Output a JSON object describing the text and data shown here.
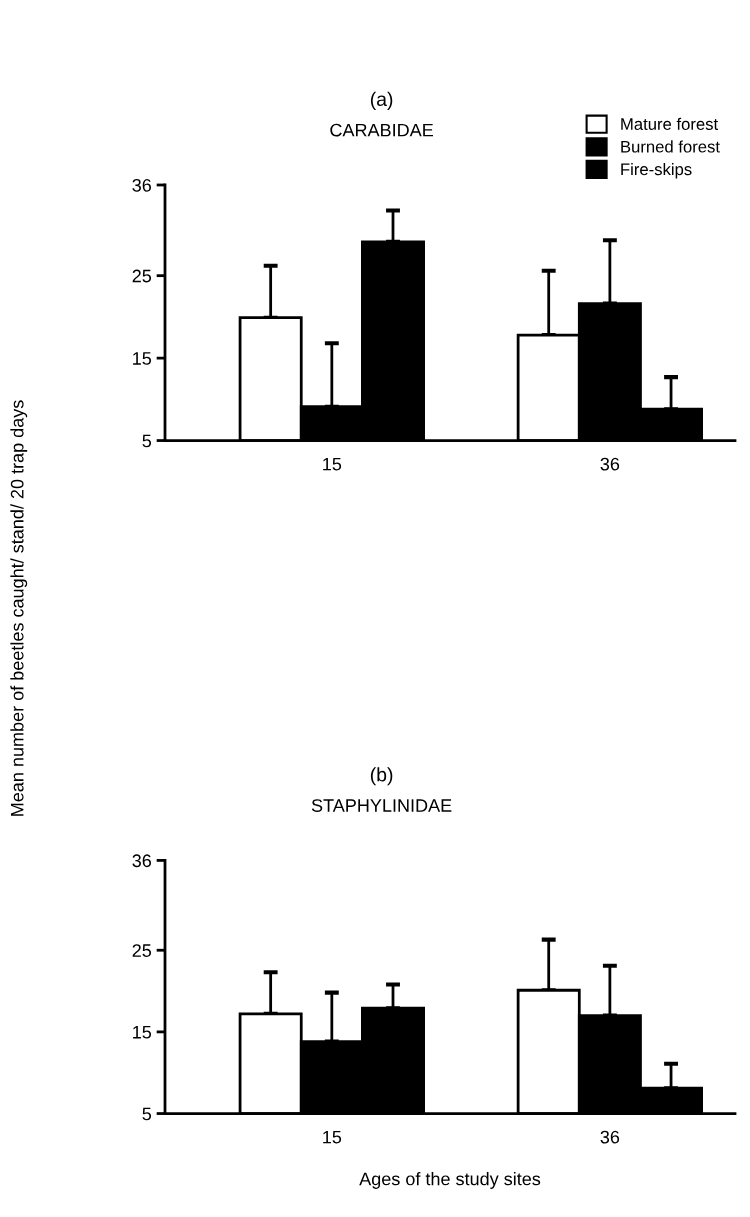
{
  "chart_data": [
    {
      "type": "bar",
      "title": "(a)",
      "subtitle": "CARABIDAE",
      "ylabel": "Mean number of beetles caught/ stand/ 20 trap days",
      "categories": [
        "15",
        "36"
      ],
      "ylim": [
        5,
        36
      ],
      "yticks": [
        5,
        15,
        25,
        36
      ],
      "legend": "top right",
      "series": [
        {
          "name": "Mature forest",
          "color": "#ffffff",
          "values": [
            19.9,
            17.8
          ],
          "errors": [
            [
              19.9,
              26.2
            ],
            [
              17.8,
              25.6
            ]
          ]
        },
        {
          "name": "Burned forest",
          "color": "#000000",
          "values": [
            9.1,
            21.6
          ],
          "errors": [
            [
              9.1,
              16.8
            ],
            [
              21.6,
              29.3
            ]
          ]
        },
        {
          "name": "Fire-skips",
          "color": "#000000",
          "values": [
            29.1,
            8.8
          ],
          "errors": [
            [
              29.1,
              32.9
            ],
            [
              8.8,
              12.7
            ]
          ]
        }
      ]
    },
    {
      "type": "bar",
      "title": "(b)",
      "subtitle": "STAPHYLINIDAE",
      "xlabel": "Ages of the study sites",
      "categories": [
        "15",
        "36"
      ],
      "ylim": [
        5,
        36
      ],
      "yticks": [
        5,
        15,
        25,
        36
      ],
      "series": [
        {
          "color": "#ffffff",
          "values": [
            17.2,
            20.1
          ],
          "errors": [
            [
              17.2,
              22.3
            ],
            [
              20.1,
              26.3
            ]
          ]
        },
        {
          "color": "#000000",
          "values": [
            13.8,
            17.0
          ],
          "errors": [
            [
              13.8,
              19.8
            ],
            [
              17.0,
              23.1
            ]
          ]
        },
        {
          "color": "#000000",
          "values": [
            17.9,
            8.1
          ],
          "errors": [
            [
              17.9,
              20.8
            ],
            [
              8.1,
              11.1
            ]
          ]
        }
      ]
    }
  ]
}
